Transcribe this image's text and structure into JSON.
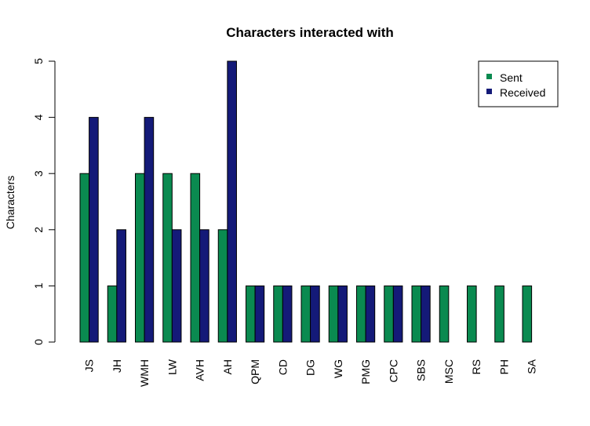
{
  "chart_data": {
    "type": "bar",
    "title": "Characters interacted with",
    "xlabel": "",
    "ylabel": "Characters",
    "ylim": [
      0,
      5
    ],
    "yticks": [
      0,
      1,
      2,
      3,
      4,
      5
    ],
    "grid": false,
    "legend_position": "top-right",
    "categories": [
      "JS",
      "JH",
      "WMH",
      "LW",
      "AVH",
      "AH",
      "QPM",
      "CD",
      "DG",
      "WG",
      "PMG",
      "CPC",
      "SBS",
      "MSC",
      "RS",
      "PH",
      "SA"
    ],
    "series": [
      {
        "name": "Sent",
        "color": "#0a8a50",
        "values": [
          3,
          1,
          3,
          3,
          3,
          2,
          1,
          1,
          1,
          1,
          1,
          1,
          1,
          1,
          1,
          1,
          1
        ]
      },
      {
        "name": "Received",
        "color": "#141a78",
        "values": [
          4,
          2,
          4,
          2,
          2,
          5,
          1,
          1,
          1,
          1,
          1,
          1,
          1,
          0,
          0,
          0,
          0
        ]
      }
    ]
  }
}
